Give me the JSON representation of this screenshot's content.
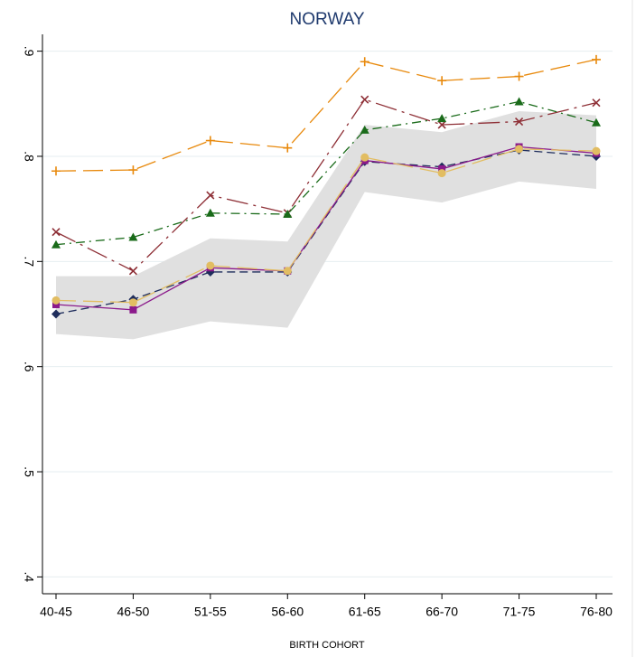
{
  "chart_data": {
    "type": "line",
    "title": "NORWAY",
    "x_label": "BIRTH COHORT",
    "categories": [
      "40-45",
      "46-50",
      "51-55",
      "56-60",
      "61-65",
      "66-70",
      "71-75",
      "76-80"
    ],
    "ylim": [
      0.384,
      0.916
    ],
    "yticks": [
      {
        "value": 0.4,
        "label": ".4"
      },
      {
        "value": 0.5,
        "label": ".5"
      },
      {
        "value": 0.6,
        "label": ".6"
      },
      {
        "value": 0.7,
        "label": ".7"
      },
      {
        "value": 0.8,
        "label": ".8"
      },
      {
        "value": 0.9,
        "label": ".9"
      }
    ],
    "grid": true,
    "band": {
      "color": "#e0e0e0",
      "upper": [
        0.686,
        0.686,
        0.722,
        0.719,
        0.83,
        0.823,
        0.843,
        0.839
      ],
      "lower": [
        0.631,
        0.626,
        0.643,
        0.637,
        0.766,
        0.756,
        0.776,
        0.769
      ]
    },
    "series": [
      {
        "color": "#e8890c",
        "dash": "long-dash",
        "marker": "plus",
        "values": [
          0.786,
          0.787,
          0.815,
          0.808,
          0.89,
          0.872,
          0.876,
          0.892
        ]
      },
      {
        "color": "#8e2f36",
        "dash": "long-dash-dot",
        "marker": "cross",
        "values": [
          0.728,
          0.691,
          0.763,
          0.746,
          0.854,
          0.83,
          0.833,
          0.851
        ]
      },
      {
        "color": "#1a6b1a",
        "dash": "dash-dot",
        "marker": "triangle",
        "values": [
          0.716,
          0.723,
          0.746,
          0.745,
          0.825,
          0.836,
          0.852,
          0.832
        ]
      },
      {
        "color": "#1f2d5c",
        "dash": "dash",
        "marker": "diamond",
        "values": [
          0.65,
          0.664,
          0.69,
          0.69,
          0.795,
          0.79,
          0.806,
          0.8
        ]
      },
      {
        "color": "#8b1a8b",
        "dash": "solid",
        "marker": "square",
        "values": [
          0.659,
          0.654,
          0.694,
          0.691,
          0.796,
          0.788,
          0.809,
          0.803
        ]
      },
      {
        "color": "#e2bd62",
        "dash": "long-dash",
        "marker": "circle",
        "values": [
          0.663,
          0.661,
          0.696,
          0.691,
          0.799,
          0.784,
          0.807,
          0.805
        ]
      }
    ]
  }
}
